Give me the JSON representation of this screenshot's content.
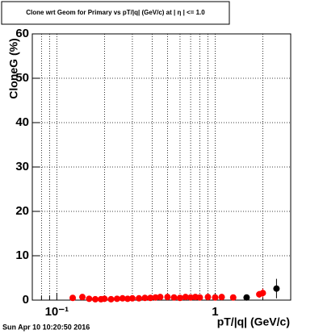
{
  "chart_data": {
    "type": "scatter",
    "title": "Clone wrt Geom for Primary vs pT/|q| (GeV/c) at | η | <= 1.0",
    "x_label": "pT/|q| (GeV/c)",
    "y_label": "CloneG (%)",
    "timestamp": "Sun Apr 10 10:20:50 2016",
    "log_x": true,
    "grid": true,
    "xlim": [
      0.07,
      3.0
    ],
    "xticks": [
      {
        "value": 0.1,
        "label": "10⁻¹"
      },
      1
    ],
    "xminor": [
      0.08,
      0.09,
      0.2,
      0.3,
      0.4,
      0.5,
      0.6,
      0.7,
      0.8,
      0.9,
      2,
      3
    ],
    "ylim": [
      0,
      60
    ],
    "yticks": [
      0,
      10,
      20,
      30,
      40,
      50,
      60
    ],
    "series": [
      {
        "color": "#ff0000",
        "x": [
          0.126,
          0.145,
          0.16,
          0.175,
          0.19,
          0.2,
          0.22,
          0.24,
          0.26,
          0.28,
          0.3,
          0.33,
          0.36,
          0.39,
          0.42,
          0.45,
          0.5,
          0.55,
          0.6,
          0.65,
          0.7,
          0.75,
          0.8,
          0.9,
          1.0,
          1.1,
          1.3,
          1.9,
          2.0
        ],
        "values": [
          0.5,
          0.7,
          0.3,
          0.2,
          0.2,
          0.3,
          0.2,
          0.3,
          0.4,
          0.3,
          0.4,
          0.4,
          0.5,
          0.5,
          0.6,
          0.7,
          0.7,
          0.6,
          0.5,
          0.7,
          0.6,
          0.7,
          0.6,
          0.7,
          0.6,
          0.7,
          0.6,
          1.3,
          1.6
        ],
        "errors": [
          0.2,
          0.2,
          0.2,
          0.2,
          0.2,
          0.2,
          0.2,
          0.2,
          0.2,
          0.2,
          0.2,
          0.2,
          0.2,
          0.2,
          0.2,
          0.2,
          0.2,
          0.2,
          0.2,
          0.2,
          0.2,
          0.2,
          0.2,
          0.2,
          0.2,
          0.2,
          0.3,
          0.8,
          1.0
        ]
      },
      {
        "color": "#000000",
        "x": [
          1.58,
          2.44
        ],
        "values": [
          0.6,
          2.6
        ],
        "errors": [
          0.3,
          2.2
        ]
      }
    ]
  }
}
